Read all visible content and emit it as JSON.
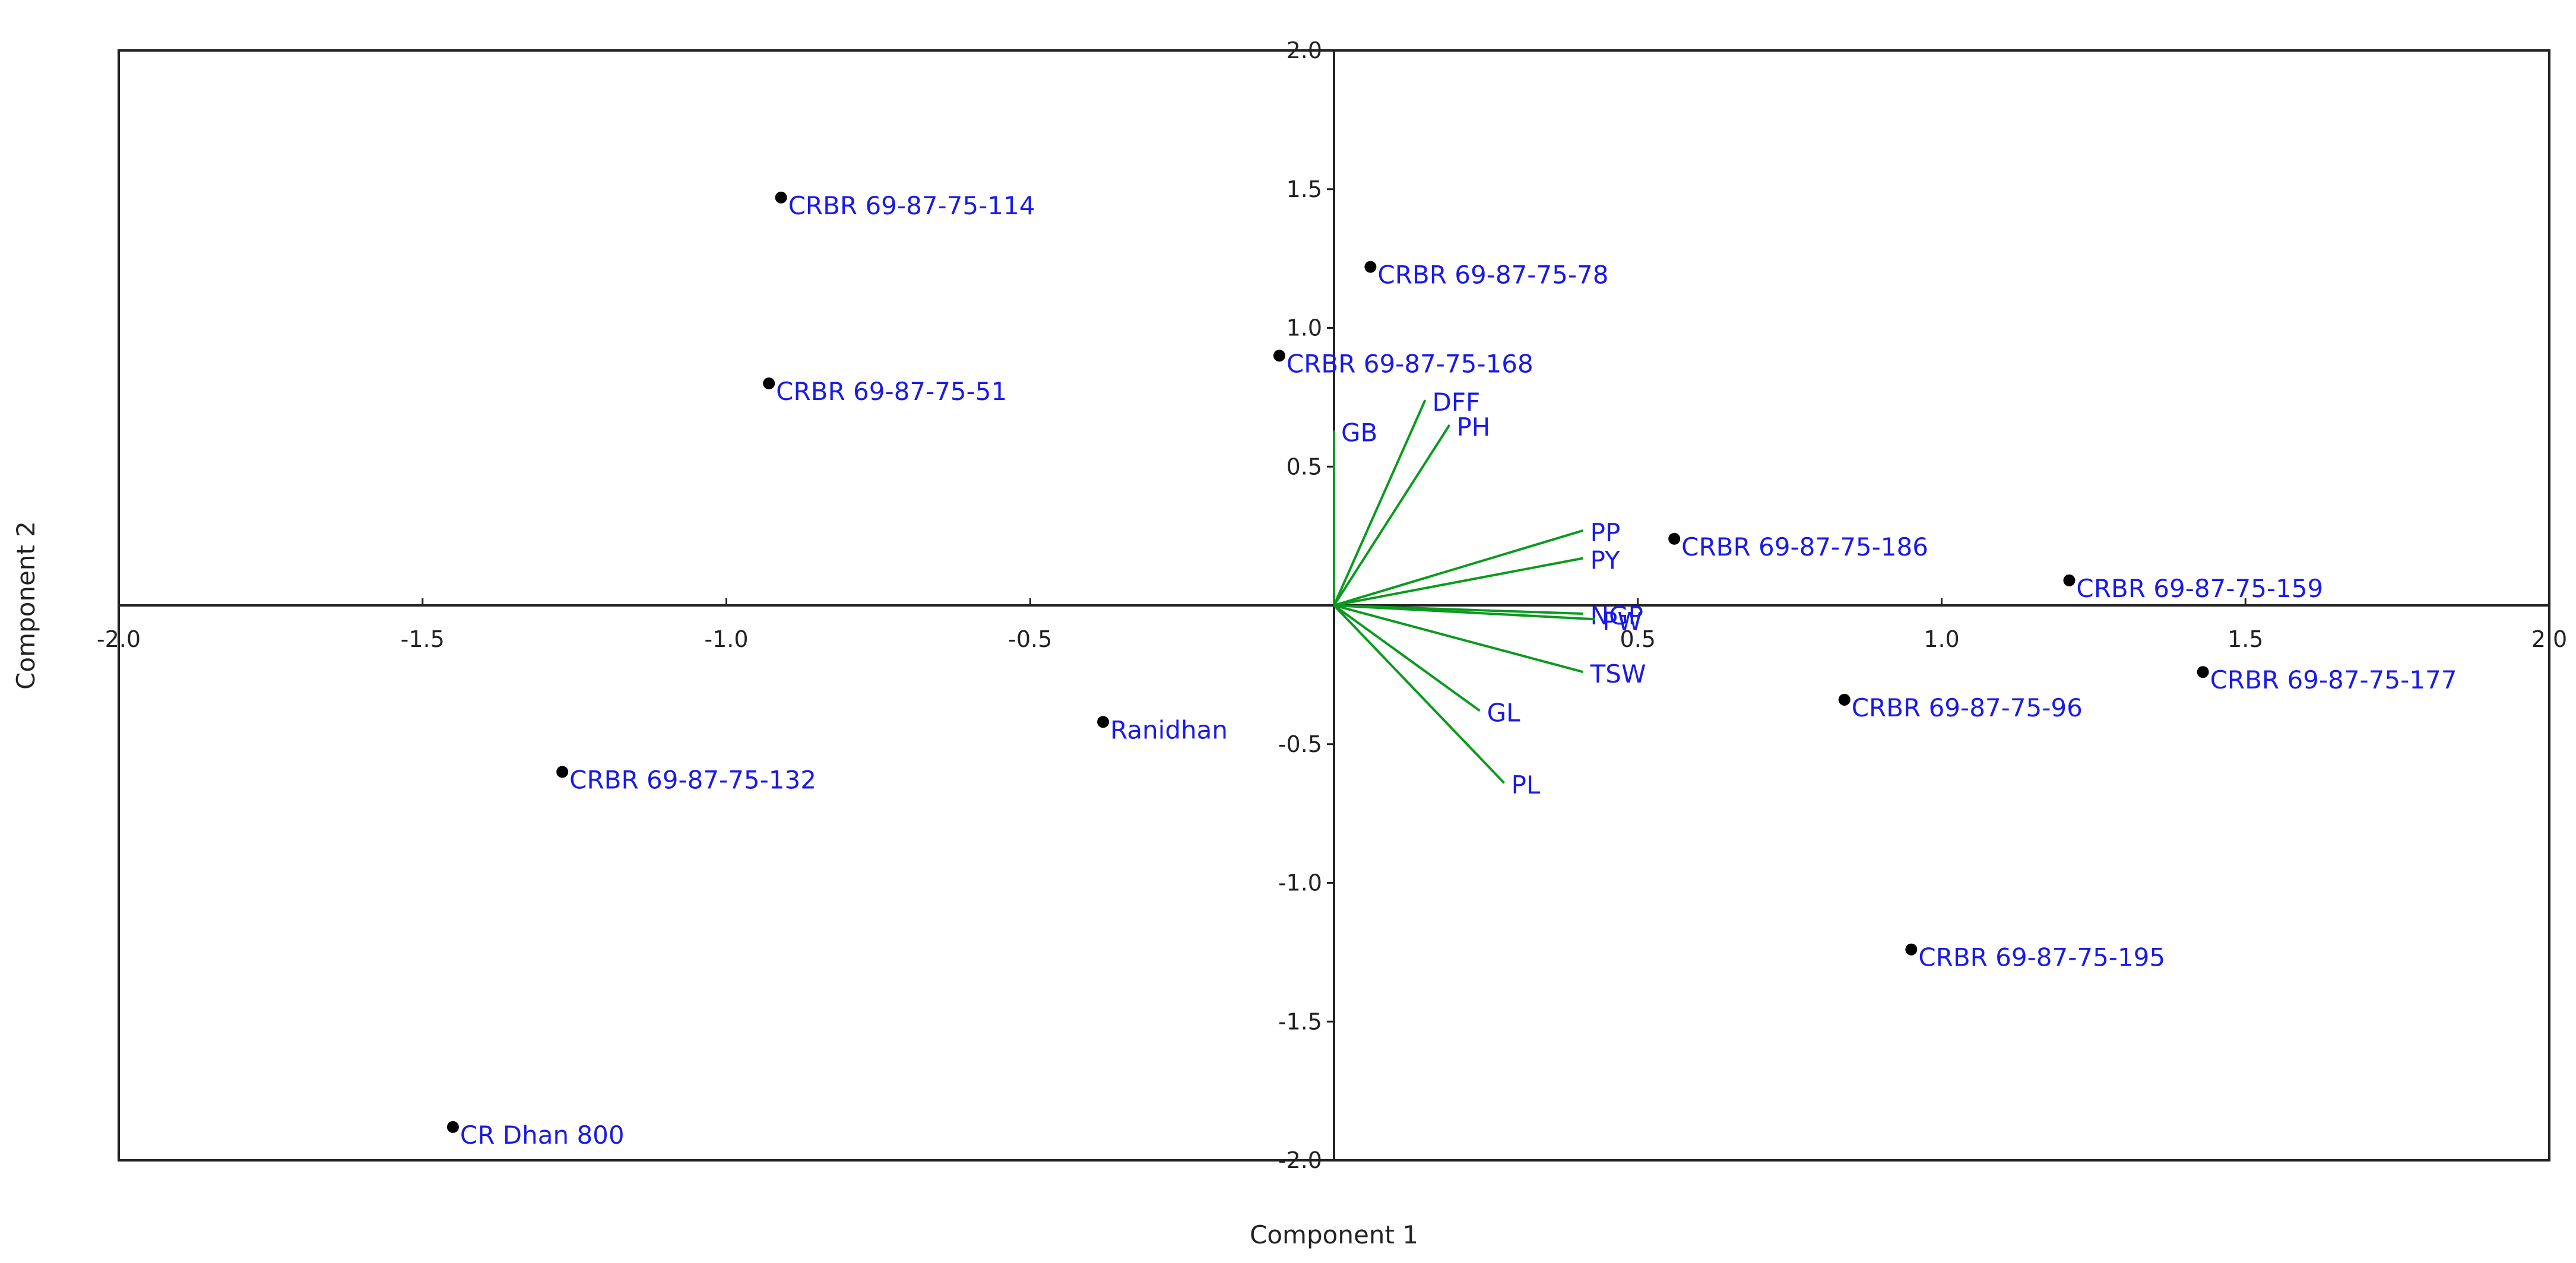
{
  "chart_data": {
    "type": "scatter",
    "title": "",
    "xlabel": "Component 1",
    "ylabel": "Component 2",
    "xlim": [
      -2.0,
      2.0
    ],
    "ylim": [
      -2.0,
      2.0
    ],
    "xticks": [
      -2.0,
      -1.5,
      -1.0,
      -0.5,
      0.5,
      1.0,
      1.5,
      2.0
    ],
    "yticks": [
      2.0,
      1.5,
      1.0,
      0.5,
      -0.5,
      -1.0,
      -1.5,
      -2.0
    ],
    "xtick_labels": [
      "-2.0",
      "-1.5",
      "-1.0",
      "-0.5",
      "0.5",
      "1.0",
      "1.5",
      "2.0"
    ],
    "ytick_labels": [
      "2.0",
      "1.5",
      "1.0",
      "0.5",
      "-0.5",
      "-1.0",
      "-1.5",
      "-2.0"
    ],
    "grid": false,
    "points": [
      {
        "label": "CRBR 69-87-75-114",
        "x": -0.91,
        "y": 1.47
      },
      {
        "label": "CRBR 69-87-75-78",
        "x": 0.06,
        "y": 1.22
      },
      {
        "label": "CRBR 69-87-75-168",
        "x": -0.09,
        "y": 0.9
      },
      {
        "label": "CRBR 69-87-75-51",
        "x": -0.93,
        "y": 0.8
      },
      {
        "label": "CRBR 69-87-75-186",
        "x": 0.56,
        "y": 0.24
      },
      {
        "label": "CRBR 69-87-75-159",
        "x": 1.21,
        "y": 0.09
      },
      {
        "label": "CRBR 69-87-75-177",
        "x": 1.43,
        "y": -0.24
      },
      {
        "label": "CRBR 69-87-75-96",
        "x": 0.84,
        "y": -0.34
      },
      {
        "label": "Ranidhan",
        "x": -0.38,
        "y": -0.42
      },
      {
        "label": "CRBR 69-87-75-132",
        "x": -1.27,
        "y": -0.6
      },
      {
        "label": "CRBR 69-87-75-195",
        "x": 0.95,
        "y": -1.24
      },
      {
        "label": "CR Dhan 800",
        "x": -1.45,
        "y": -1.88
      }
    ],
    "loadings": [
      {
        "label": "GB",
        "x": 0.0,
        "y": 0.63
      },
      {
        "label": "DFF",
        "x": 0.15,
        "y": 0.74
      },
      {
        "label": "PH",
        "x": 0.19,
        "y": 0.65
      },
      {
        "label": "PP",
        "x": 0.41,
        "y": 0.27
      },
      {
        "label": "PY",
        "x": 0.41,
        "y": 0.17
      },
      {
        "label": "NGP",
        "x": 0.41,
        "y": -0.03
      },
      {
        "label": "PW",
        "x": 0.43,
        "y": -0.05
      },
      {
        "label": "TSW",
        "x": 0.41,
        "y": -0.24
      },
      {
        "label": "GL",
        "x": 0.24,
        "y": -0.38
      },
      {
        "label": "PL",
        "x": 0.28,
        "y": -0.64
      }
    ],
    "colors": {
      "point": "#000000",
      "point_label": "#1a1ae6",
      "loading_line": "#0a9a1e",
      "loading_label": "#1a1ae6",
      "frame": "#222222"
    }
  }
}
